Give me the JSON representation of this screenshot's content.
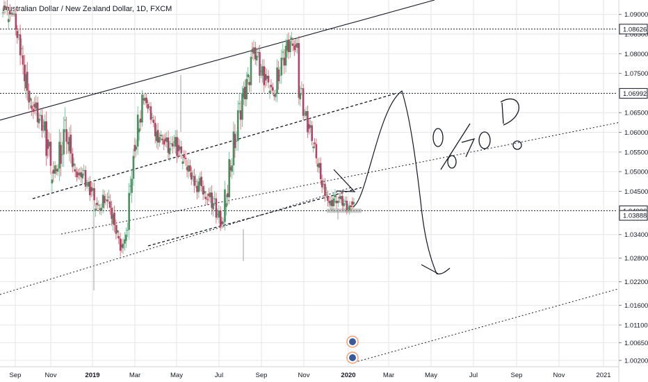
{
  "title": "Australian Dollar / New Zealand Dollar, 1D, FXCM",
  "chart_data": {
    "type": "candlestick",
    "symbol": "Australian Dollar / New Zealand Dollar",
    "interval": "1D",
    "source": "FXCM",
    "ylim": [
      1.0018,
      1.0926
    ],
    "y_ticks": [
      "1.09000",
      "1.08500",
      "1.08000",
      "1.07500",
      "1.06500",
      "1.06000",
      "1.05500",
      "1.05000",
      "1.04500",
      "1.03400",
      "1.02800",
      "1.02200",
      "1.01600",
      "1.01100",
      "1.00650",
      "1.00200"
    ],
    "x_ticks": [
      {
        "label": "Sep",
        "bold": false
      },
      {
        "label": "Nov",
        "bold": false
      },
      {
        "label": "2019",
        "bold": true
      },
      {
        "label": "Mar",
        "bold": false
      },
      {
        "label": "May",
        "bold": false
      },
      {
        "label": "Jul",
        "bold": false
      },
      {
        "label": "Sep",
        "bold": false
      },
      {
        "label": "Nov",
        "bold": false
      },
      {
        "label": "2020",
        "bold": true
      },
      {
        "label": "Mar",
        "bold": false
      },
      {
        "label": "May",
        "bold": false
      },
      {
        "label": "Jul",
        "bold": false
      },
      {
        "label": "Sep",
        "bold": false
      },
      {
        "label": "Nov",
        "bold": false
      },
      {
        "label": "2021",
        "bold": false
      }
    ],
    "horizontal_levels": [
      {
        "label": "1.08626",
        "value": 1.08626,
        "style": "dotted"
      },
      {
        "label": "1.06992",
        "value": 1.06992,
        "style": "dotted"
      },
      {
        "label": "1.04006",
        "value": 1.04006,
        "style": "dotted"
      },
      {
        "label": "1.03888",
        "value": 1.03888,
        "style": "none"
      }
    ],
    "price_path": [
      [
        1.0905,
        1.093
      ],
      [
        1.088,
        1.092
      ],
      [
        1.09,
        1.0905
      ],
      [
        1.084,
        1.087
      ],
      [
        1.076,
        1.082
      ],
      [
        1.07,
        1.076
      ],
      [
        1.066,
        1.07
      ],
      [
        1.064,
        1.068
      ],
      [
        1.062,
        1.065
      ],
      [
        1.06,
        1.064
      ],
      [
        1.054,
        1.06
      ],
      [
        1.047,
        1.052
      ],
      [
        1.05,
        1.052
      ],
      [
        1.052,
        1.06
      ],
      [
        1.056,
        1.064
      ],
      [
        1.054,
        1.06
      ],
      [
        1.05,
        1.053
      ],
      [
        1.048,
        1.05
      ],
      [
        1.048,
        1.051
      ],
      [
        1.046,
        1.048
      ],
      [
        1.044,
        1.047
      ],
      [
        1.04,
        1.043
      ],
      [
        1.04,
        1.042
      ],
      [
        1.042,
        1.045
      ],
      [
        1.04,
        1.044
      ],
      [
        1.036,
        1.04
      ],
      [
        1.033,
        1.036
      ],
      [
        1.029,
        1.032
      ],
      [
        1.032,
        1.036
      ],
      [
        1.044,
        1.05
      ],
      [
        1.054,
        1.058
      ],
      [
        1.06,
        1.065
      ],
      [
        1.068,
        1.07
      ],
      [
        1.066,
        1.068
      ],
      [
        1.062,
        1.064
      ],
      [
        1.057,
        1.061
      ],
      [
        1.058,
        1.06
      ],
      [
        1.056,
        1.059
      ],
      [
        1.054,
        1.058
      ],
      [
        1.056,
        1.06
      ],
      [
        1.054,
        1.058
      ],
      [
        1.052,
        1.055
      ],
      [
        1.05,
        1.054
      ],
      [
        1.048,
        1.051
      ],
      [
        1.044,
        1.048
      ],
      [
        1.046,
        1.049
      ],
      [
        1.043,
        1.046
      ],
      [
        1.042,
        1.045
      ],
      [
        1.04,
        1.044
      ],
      [
        1.038,
        1.041
      ],
      [
        1.036,
        1.038
      ],
      [
        1.041,
        1.046
      ],
      [
        1.05,
        1.054
      ],
      [
        1.056,
        1.062
      ],
      [
        1.062,
        1.068
      ],
      [
        1.068,
        1.072
      ],
      [
        1.072,
        1.076
      ],
      [
        1.078,
        1.082
      ],
      [
        1.078,
        1.081
      ],
      [
        1.074,
        1.078
      ],
      [
        1.072,
        1.076
      ],
      [
        1.07,
        1.073
      ],
      [
        1.069,
        1.071
      ],
      [
        1.073,
        1.078
      ],
      [
        1.076,
        1.081
      ],
      [
        1.08,
        1.084
      ],
      [
        1.082,
        1.085
      ],
      [
        1.08,
        1.083
      ],
      [
        1.068,
        1.072
      ],
      [
        1.064,
        1.066
      ],
      [
        1.06,
        1.063
      ],
      [
        1.056,
        1.058
      ],
      [
        1.051,
        1.054
      ],
      [
        1.046,
        1.049
      ],
      [
        1.042,
        1.045
      ],
      [
        1.041,
        1.043
      ],
      [
        1.042,
        1.045
      ],
      [
        1.042,
        1.044
      ],
      [
        1.041,
        1.043
      ],
      [
        1.04,
        1.042
      ],
      [
        1.041,
        1.043
      ]
    ],
    "annotations": [
      "0",
      "0",
      "70",
      "D",
      "0"
    ]
  },
  "colors": {
    "bull": "#53b987",
    "bear": "#eb4d5c",
    "up_body": "#4a8f5e",
    "down_body": "#b2426b",
    "grid": "#e6e6e6",
    "axis_text": "#131722",
    "drawing": "#131722",
    "support_zone": "#9e9e9e"
  }
}
